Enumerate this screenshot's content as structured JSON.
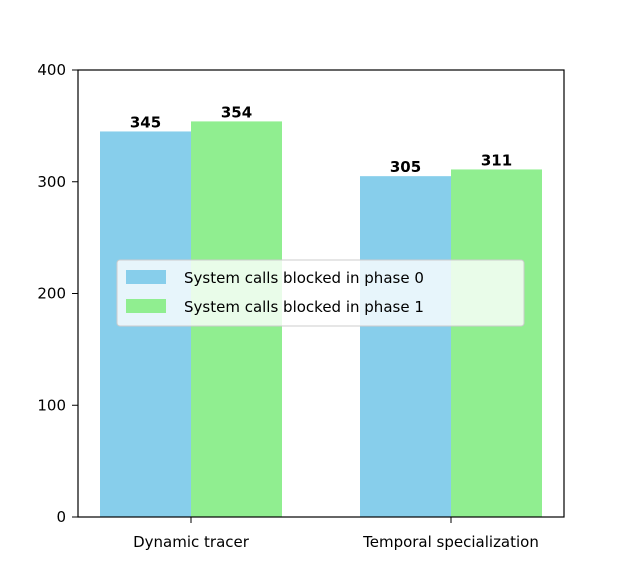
{
  "chart_data": {
    "type": "bar",
    "categories": [
      "Dynamic tracer",
      "Temporal specialization"
    ],
    "series": [
      {
        "name": "System calls blocked in phase 0",
        "values": [
          345,
          305
        ],
        "color": "#87ceeb"
      },
      {
        "name": "System calls blocked in phase 1",
        "values": [
          354,
          311
        ],
        "color": "#90ee90"
      }
    ],
    "data_labels": [
      "345",
      "305",
      "354",
      "311"
    ],
    "title": "",
    "xlabel": "",
    "ylabel": "",
    "ylim": [
      0,
      400
    ],
    "yticks": [
      0,
      100,
      200,
      300,
      400
    ],
    "ytick_labels": [
      "0",
      "100",
      "200",
      "300",
      "400"
    ],
    "grid": false,
    "legend_position": "center"
  }
}
